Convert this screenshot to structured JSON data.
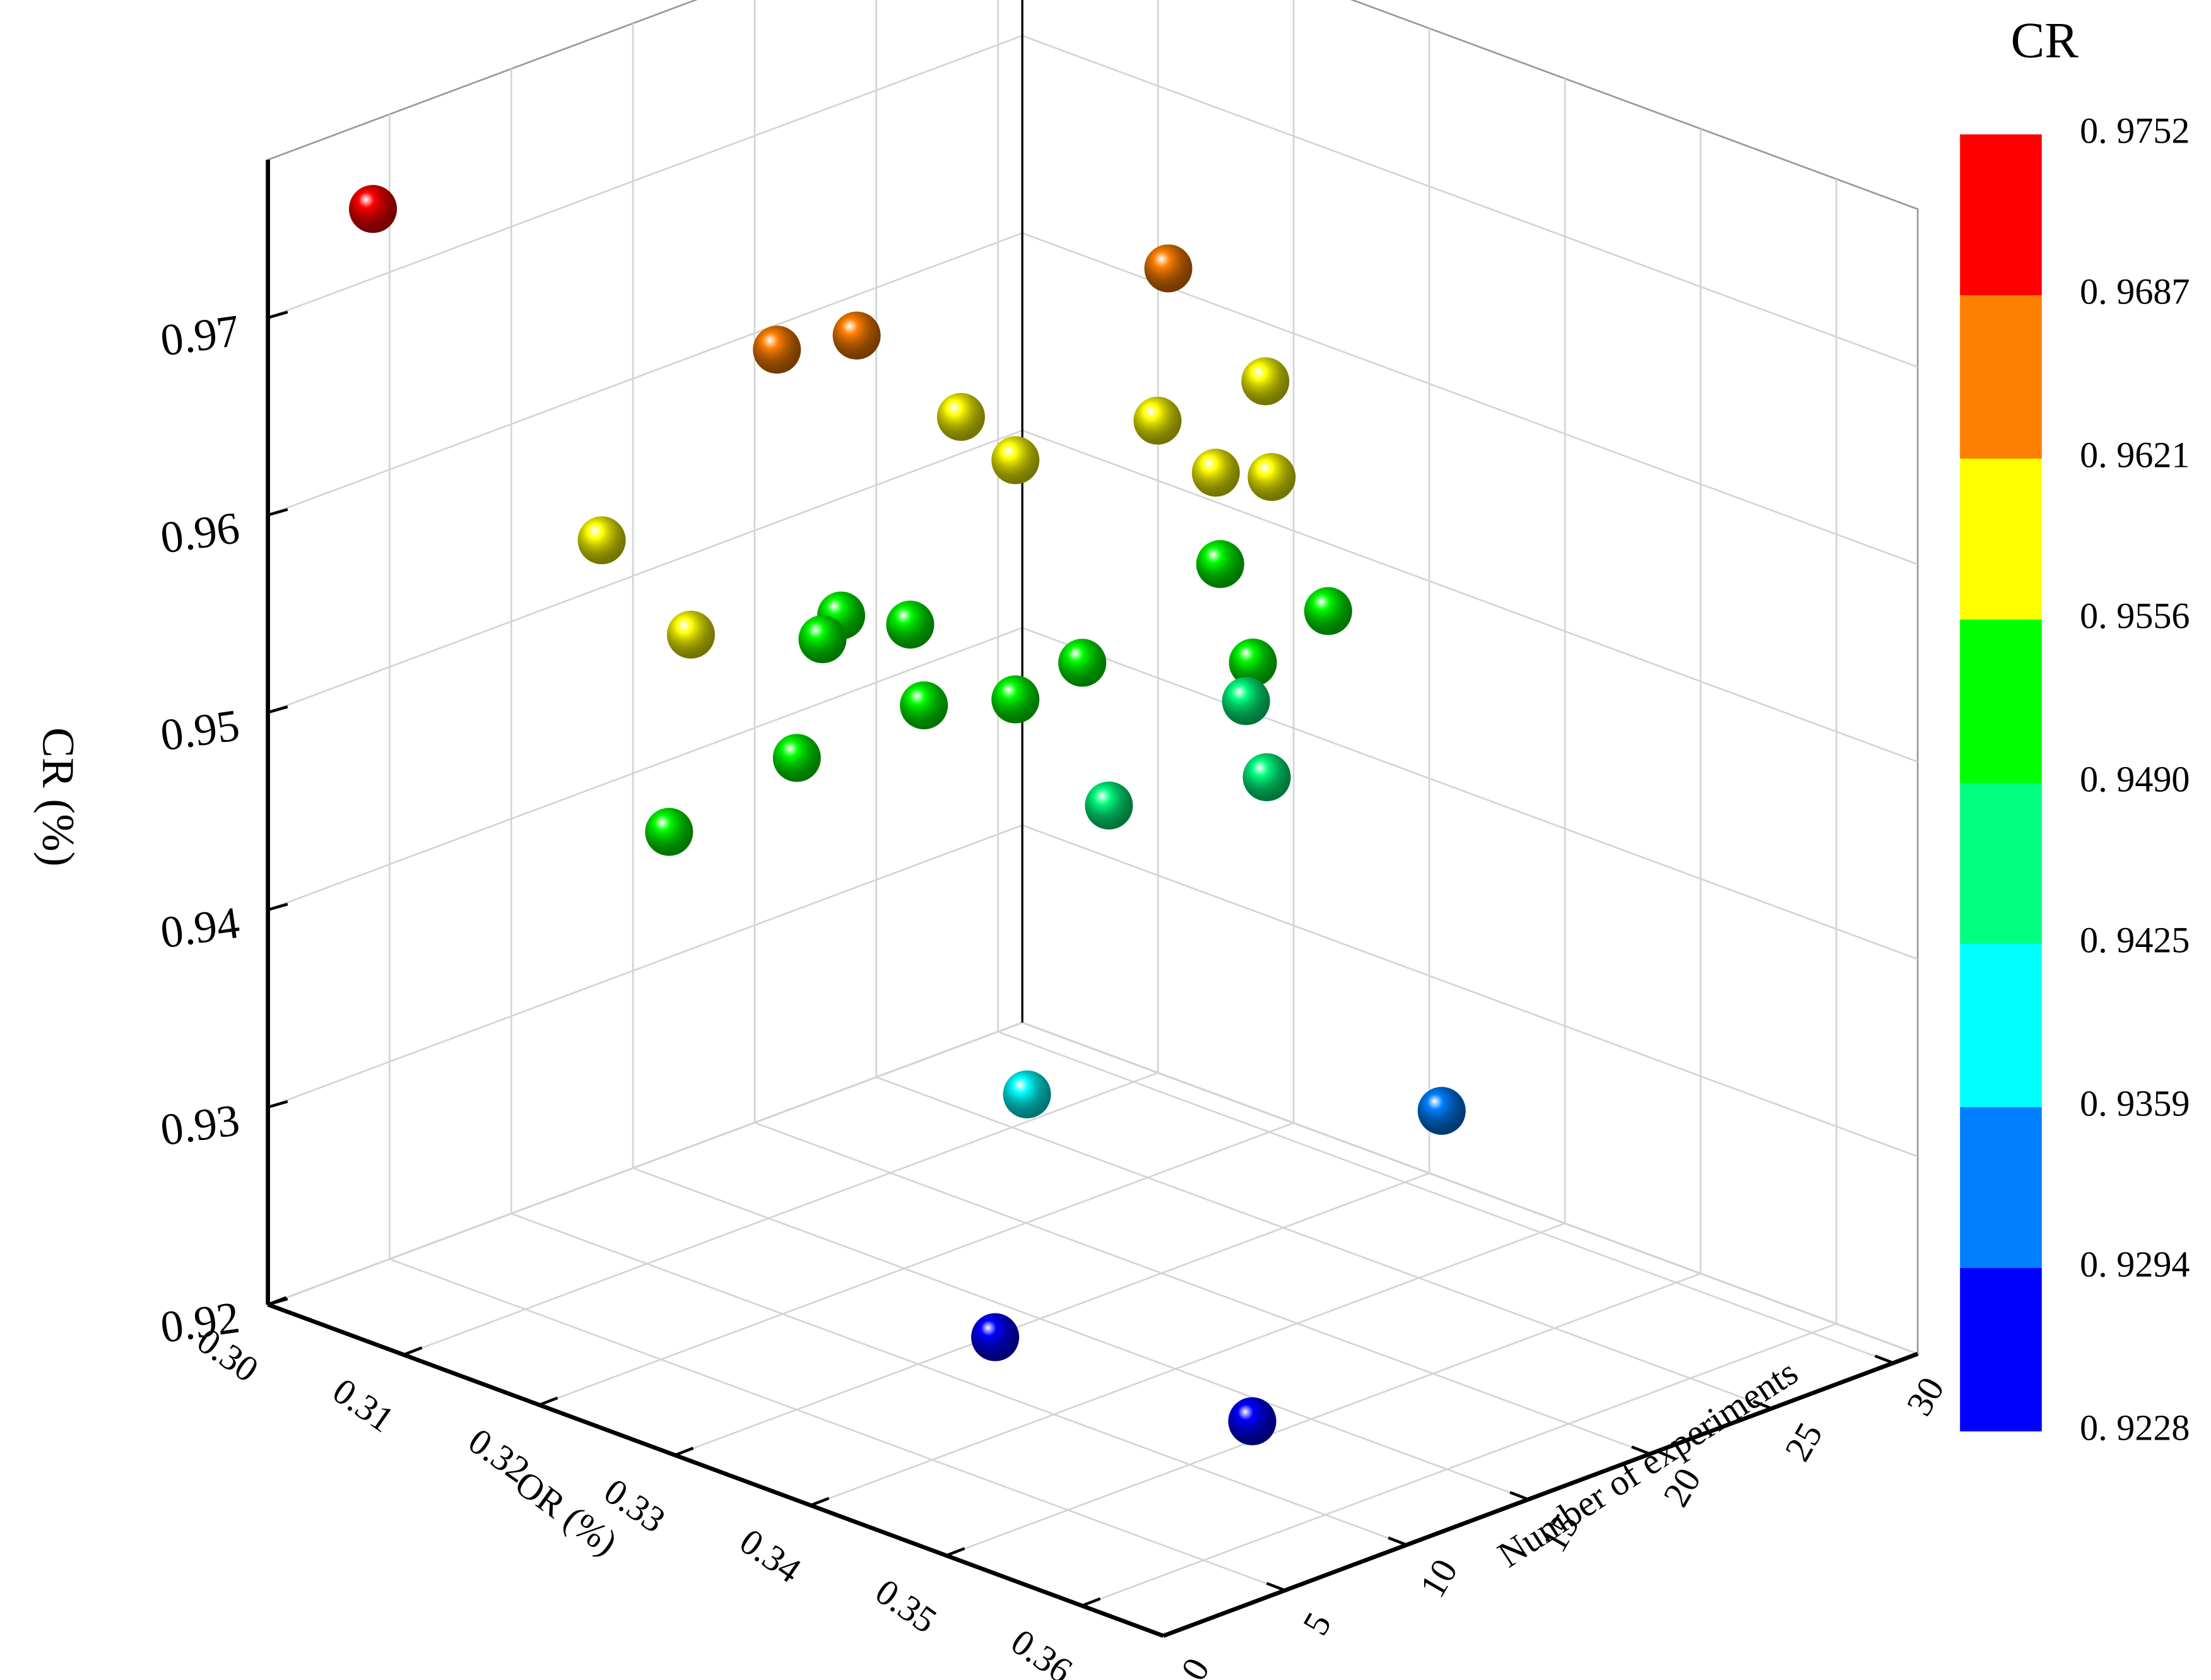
{
  "chart_data": {
    "type": "scatter3d",
    "x_label": "OR (%)",
    "y_label": "Number of experiments",
    "z_label": "CR (%)",
    "xlim": [
      0.3,
      0.366
    ],
    "ylim": [
      0,
      31
    ],
    "zlim": [
      0.92,
      0.978
    ],
    "xticks": [
      {
        "value": 0.3,
        "label": "0.30"
      },
      0.31,
      0.32,
      0.33,
      0.34,
      0.35,
      0.36
    ],
    "yticks": [
      0,
      5,
      10,
      15,
      20,
      25,
      30
    ],
    "zticks": [
      0.92,
      0.93,
      0.94,
      0.95,
      0.96,
      0.97
    ],
    "grid": true,
    "x": [
      0.3029,
      0.3226,
      0.3142,
      0.3138,
      0.3276,
      0.3179,
      0.3236,
      0.3203,
      0.327,
      0.3295,
      0.309,
      0.3197,
      0.3284,
      0.3351,
      0.3175,
      0.319,
      0.3172,
      0.3335,
      0.3272,
      0.3264,
      0.3236,
      0.3241,
      0.3267,
      0.3312,
      0.3356,
      0.3306,
      0.3425,
      0.3458,
      0.338,
      0.3539
    ],
    "y": [
      2.7,
      24.4,
      13.0,
      16.5,
      25.6,
      18.5,
      23.4,
      19.4,
      23.9,
      24.8,
      8.7,
      6.4,
      23.3,
      24.0,
      13.8,
      15.8,
      13.2,
      21.8,
      18.3,
      16.0,
      13.8,
      8.3,
      1.6,
      22.8,
      21.2,
      17.5,
      7.5,
      22.7,
      8.7,
      10.4
    ],
    "z": [
      0.975,
      0.967,
      0.966,
      0.965,
      0.962,
      0.961,
      0.96,
      0.959,
      0.958,
      0.958,
      0.957,
      0.956,
      0.954,
      0.953,
      0.953,
      0.952,
      0.952,
      0.951,
      0.951,
      0.95,
      0.95,
      0.95,
      0.95,
      0.948,
      0.946,
      0.945,
      0.938,
      0.931,
      0.924,
      0.923
    ],
    "colorbar": {
      "title": "CR",
      "ticks": [
        {
          "value": 0.9228,
          "label": "0. 9228"
        },
        {
          "value": 0.9294,
          "label": "0. 9294"
        },
        {
          "value": 0.9359,
          "label": "0. 9359"
        },
        {
          "value": 0.9425,
          "label": "0. 9425"
        },
        {
          "value": 0.949,
          "label": "0. 9490"
        },
        {
          "value": 0.9556,
          "label": "0. 9556"
        },
        {
          "value": 0.9621,
          "label": "0. 9621"
        },
        {
          "value": 0.9687,
          "label": "0. 9687"
        },
        {
          "value": 0.9752,
          "label": "0. 9752"
        }
      ],
      "colors": [
        "#0000ff",
        "#0080ff",
        "#00ffff",
        "#00ff80",
        "#00ff00",
        "#ffff00",
        "#ff8000",
        "#ff0000"
      ]
    }
  }
}
